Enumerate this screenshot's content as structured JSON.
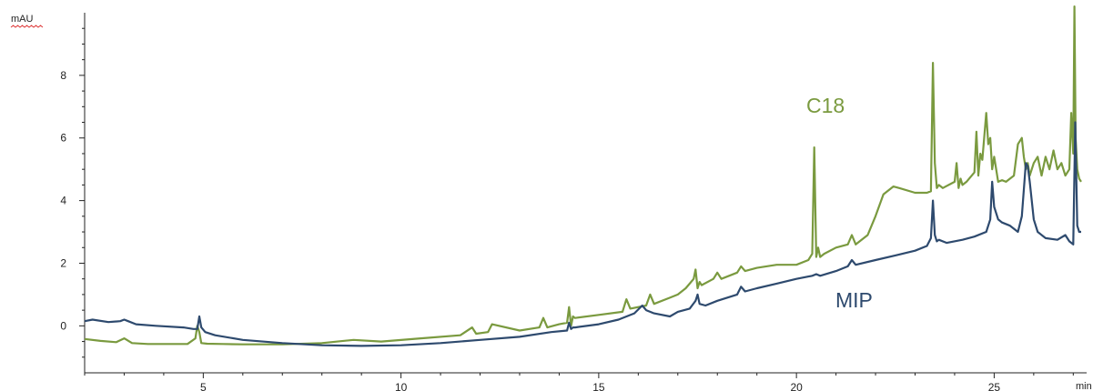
{
  "chart_data": {
    "type": "line",
    "title": "",
    "xlabel": "min",
    "ylabel": "mAU",
    "xlim": [
      2.0,
      27.2
    ],
    "ylim": [
      -1.5,
      10.0
    ],
    "xticks": [
      5,
      10,
      15,
      20,
      25
    ],
    "yticks": [
      0,
      2,
      4,
      6,
      8
    ],
    "grid": false,
    "legend": "none",
    "series": [
      {
        "name": "C18",
        "color": "#7a9a3f",
        "x": [
          2.0,
          2.4,
          2.8,
          3.0,
          3.2,
          3.6,
          4.0,
          4.6,
          4.8,
          4.85,
          4.9,
          4.95,
          5.1,
          5.5,
          6.0,
          7.0,
          8.0,
          8.8,
          9.5,
          10.5,
          11.5,
          11.8,
          11.9,
          12.2,
          12.3,
          13.0,
          13.5,
          13.6,
          13.7,
          14.0,
          14.2,
          14.25,
          14.3,
          14.35,
          14.4,
          15.0,
          15.6,
          15.7,
          15.8,
          16.2,
          16.3,
          16.4,
          16.8,
          17.0,
          17.2,
          17.4,
          17.45,
          17.5,
          17.55,
          17.6,
          17.9,
          18.0,
          18.1,
          18.5,
          18.6,
          18.7,
          19.0,
          19.5,
          20.0,
          20.3,
          20.4,
          20.45,
          20.5,
          20.55,
          20.6,
          20.7,
          21.0,
          21.3,
          21.4,
          21.5,
          21.8,
          22.0,
          22.2,
          22.45,
          22.6,
          23.0,
          23.3,
          23.4,
          23.45,
          23.5,
          23.55,
          23.6,
          23.7,
          24.0,
          24.05,
          24.1,
          24.15,
          24.2,
          24.3,
          24.5,
          24.55,
          24.6,
          24.65,
          24.7,
          24.8,
          24.85,
          24.9,
          24.95,
          25.0,
          25.05,
          25.1,
          25.2,
          25.3,
          25.5,
          25.6,
          25.7,
          25.75,
          25.8,
          25.85,
          25.9,
          26.0,
          26.1,
          26.2,
          26.3,
          26.4,
          26.5,
          26.6,
          26.7,
          26.8,
          26.9,
          26.95,
          27.0,
          27.03,
          27.06,
          27.1,
          27.15,
          27.2
        ],
        "y": [
          -0.42,
          -0.48,
          -0.52,
          -0.4,
          -0.55,
          -0.58,
          -0.58,
          -0.58,
          -0.4,
          0.0,
          -0.2,
          -0.55,
          -0.57,
          -0.58,
          -0.59,
          -0.59,
          -0.55,
          -0.45,
          -0.5,
          -0.4,
          -0.3,
          -0.05,
          -0.25,
          -0.2,
          0.05,
          -0.15,
          -0.05,
          0.25,
          -0.05,
          0.05,
          0.1,
          0.6,
          0.0,
          0.3,
          0.25,
          0.35,
          0.45,
          0.85,
          0.55,
          0.65,
          1.0,
          0.7,
          0.9,
          1.0,
          1.2,
          1.5,
          1.8,
          1.2,
          1.4,
          1.3,
          1.5,
          1.7,
          1.5,
          1.7,
          1.9,
          1.75,
          1.85,
          1.95,
          1.95,
          2.1,
          2.3,
          5.7,
          2.2,
          2.5,
          2.2,
          2.3,
          2.5,
          2.6,
          2.9,
          2.6,
          2.9,
          3.5,
          4.2,
          4.45,
          4.4,
          4.25,
          4.25,
          4.3,
          8.4,
          5.2,
          4.4,
          4.5,
          4.4,
          4.6,
          5.2,
          4.4,
          4.7,
          4.5,
          4.6,
          4.9,
          6.2,
          4.8,
          5.5,
          5.3,
          6.8,
          5.8,
          6.0,
          5.0,
          5.4,
          5.0,
          4.6,
          4.65,
          4.6,
          4.8,
          5.8,
          6.0,
          5.4,
          5.0,
          5.2,
          4.8,
          5.2,
          5.4,
          4.8,
          5.4,
          5.0,
          5.6,
          5.0,
          5.2,
          4.8,
          5.0,
          6.8,
          5.5,
          10.2,
          6.0,
          5.0,
          4.7,
          4.6
        ]
      },
      {
        "name": "MIP",
        "color": "#2e4a6e",
        "x": [
          2.0,
          2.2,
          2.6,
          2.9,
          3.0,
          3.1,
          3.3,
          3.8,
          4.5,
          4.75,
          4.85,
          4.9,
          4.95,
          5.05,
          5.3,
          6.0,
          7.0,
          8.0,
          9.0,
          10.0,
          11.0,
          12.0,
          13.0,
          13.8,
          14.2,
          14.25,
          14.3,
          14.35,
          14.4,
          15.0,
          15.5,
          15.9,
          16.1,
          16.2,
          16.4,
          16.8,
          17.0,
          17.3,
          17.45,
          17.5,
          17.55,
          17.7,
          18.0,
          18.5,
          18.6,
          18.7,
          19.0,
          19.5,
          20.0,
          20.4,
          20.5,
          20.6,
          21.0,
          21.3,
          21.4,
          21.5,
          22.0,
          22.5,
          23.0,
          23.3,
          23.4,
          23.45,
          23.5,
          23.55,
          23.6,
          23.8,
          24.2,
          24.5,
          24.8,
          24.9,
          24.95,
          25.0,
          25.1,
          25.2,
          25.4,
          25.6,
          25.7,
          25.8,
          25.85,
          25.9,
          26.0,
          26.1,
          26.3,
          26.6,
          26.8,
          26.9,
          27.0,
          27.05,
          27.1,
          27.15,
          27.2
        ],
        "y": [
          0.15,
          0.2,
          0.12,
          0.15,
          0.2,
          0.15,
          0.05,
          0.0,
          -0.05,
          -0.1,
          -0.1,
          0.3,
          -0.05,
          -0.2,
          -0.3,
          -0.45,
          -0.55,
          -0.62,
          -0.64,
          -0.62,
          -0.55,
          -0.45,
          -0.35,
          -0.2,
          -0.15,
          0.1,
          -0.1,
          -0.05,
          -0.05,
          0.05,
          0.2,
          0.4,
          0.65,
          0.5,
          0.4,
          0.3,
          0.45,
          0.55,
          0.8,
          1.0,
          0.7,
          0.65,
          0.8,
          1.0,
          1.25,
          1.1,
          1.2,
          1.35,
          1.5,
          1.6,
          1.65,
          1.6,
          1.75,
          1.9,
          2.1,
          1.95,
          2.1,
          2.25,
          2.4,
          2.55,
          2.8,
          4.0,
          2.9,
          2.7,
          2.75,
          2.65,
          2.75,
          2.85,
          3.0,
          3.4,
          4.6,
          3.8,
          3.4,
          3.3,
          3.2,
          3.0,
          3.5,
          5.2,
          5.1,
          4.6,
          3.4,
          3.0,
          2.8,
          2.75,
          2.9,
          2.7,
          2.6,
          6.5,
          3.2,
          3.0,
          3.0
        ]
      }
    ],
    "annotations": [
      {
        "text": "C18",
        "color": "#7a9a3f"
      },
      {
        "text": "MIP",
        "color": "#2e4a6e"
      }
    ]
  }
}
